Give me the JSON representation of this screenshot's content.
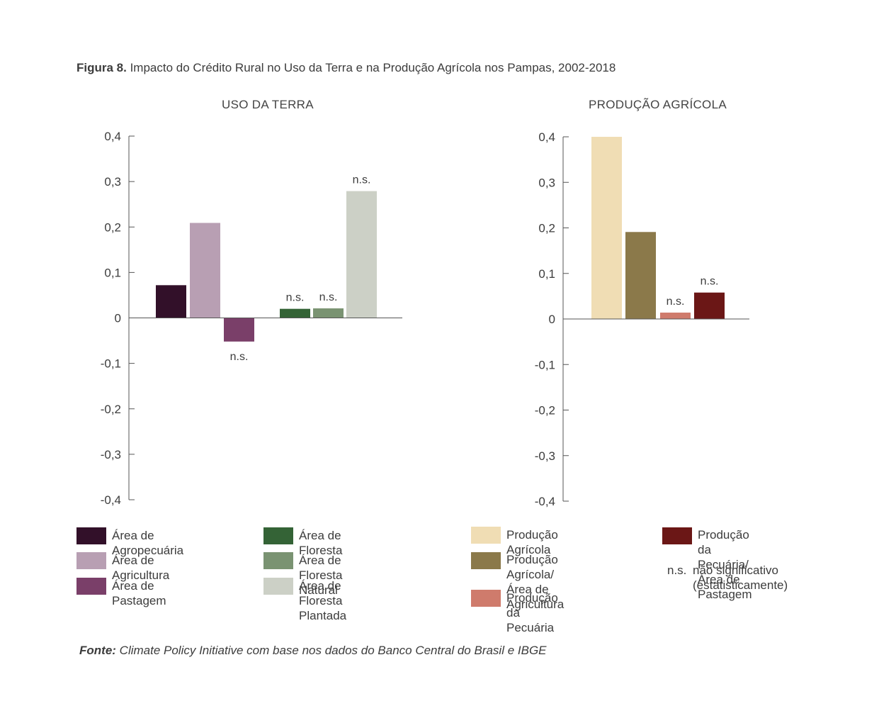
{
  "caption": {
    "prefix": "Figura 8.",
    "text": " Impacto do Crédito Rural no Uso da Terra e na Produção Agrícola nos Pampas, 2002-2018"
  },
  "chart_data": [
    {
      "type": "bar",
      "title": "USO DA TERRA",
      "ylim": [
        -0.4,
        0.4
      ],
      "yticks": [
        "0,4",
        "0,3",
        "0,2",
        "0,1",
        "0",
        "-0,1",
        "-0,2",
        "-0,3",
        "-0,4"
      ],
      "grid": false,
      "categories": [
        "Área de Agropecuária",
        "Área de Agricultura",
        "Área de Pastagem",
        "Área de Floresta",
        "Área de Floresta Natural",
        "Área de Floresta Plantada"
      ],
      "values": [
        0.072,
        0.209,
        -0.052,
        0.02,
        0.021,
        0.279
      ],
      "labels": [
        "",
        "",
        "n.s.",
        "n.s.",
        "n.s.",
        "n.s."
      ],
      "colors": [
        "#321029",
        "#b89fb3",
        "#7a3f69",
        "#346336",
        "#7a9372",
        "#ccd0c6"
      ]
    },
    {
      "type": "bar",
      "title": "PRODUÇÃO AGRÍCOLA",
      "ylim": [
        -0.4,
        0.4
      ],
      "yticks": [
        "0,4",
        "0,3",
        "0,2",
        "0,1",
        "0",
        "-0,1",
        "-0,2",
        "-0,3",
        "-0,4"
      ],
      "grid": false,
      "categories": [
        "Produção Agrícola",
        "Produção Agrícola/ Área de Agricultura",
        "Produção da Pecuária",
        "Produção da Pecuária/ Área de Pastagem"
      ],
      "values": [
        0.4,
        0.191,
        0.014,
        0.058
      ],
      "labels": [
        "",
        "",
        "n.s.",
        "n.s."
      ],
      "colors": [
        "#f0ddb4",
        "#8b794a",
        "#cf7b6c",
        "#6b1716"
      ]
    }
  ],
  "legend": {
    "items": [
      {
        "label": "Área de Agropecuária",
        "color": "#321029"
      },
      {
        "label": "Área de Agricultura",
        "color": "#b89fb3"
      },
      {
        "label": "Área de Pastagem",
        "color": "#7a3f69"
      },
      {
        "label": "Área de Floresta",
        "color": "#346336"
      },
      {
        "label": "Área de Floresta Natural",
        "color": "#7a9372"
      },
      {
        "label": "Área de Floresta Plantada",
        "color": "#ccd0c6"
      },
      {
        "label": "Produção Agrícola",
        "color": "#f0ddb4"
      },
      {
        "label": "Produção Agrícola/\nÁrea de Agricultura",
        "color": "#8b794a"
      },
      {
        "label": "Produção da Pecuária",
        "color": "#cf7b6c"
      },
      {
        "label": "Produção da Pecuária/\nÁrea de Pastagem",
        "color": "#6b1716"
      }
    ],
    "ns_abbr": "n.s.",
    "ns_text": "não significativo\n(estatisticamente)"
  },
  "source": {
    "prefix": "Fonte:",
    "text": " Climate Policy Initiative com base nos dados do Banco Central do Brasil e IBGE"
  }
}
